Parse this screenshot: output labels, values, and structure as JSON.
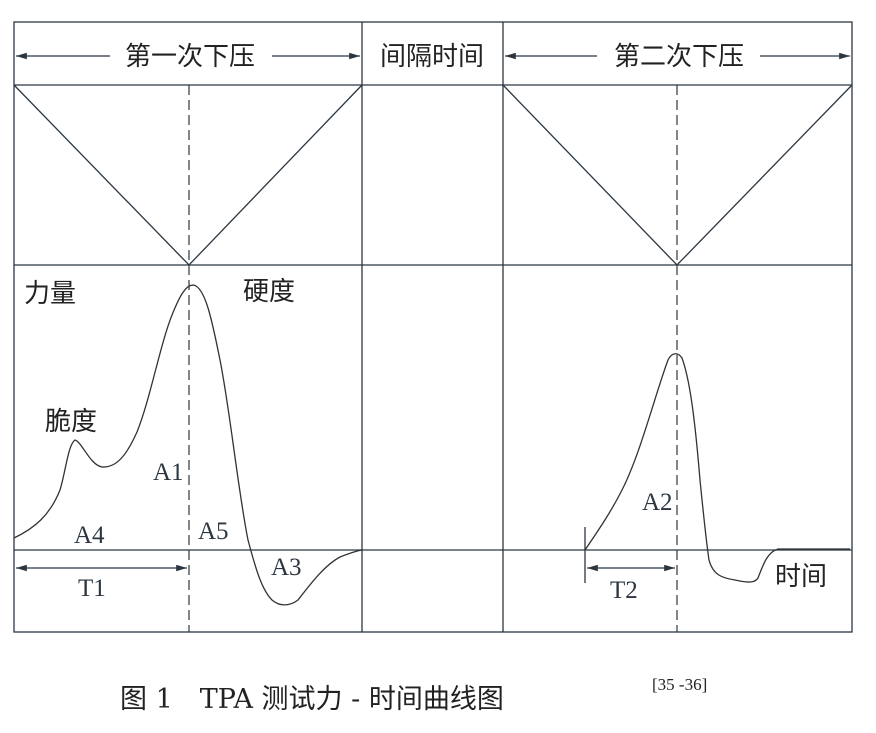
{
  "header": {
    "first_compression": "第一次下压",
    "interval": "间隔时间",
    "second_compression": "第二次下压"
  },
  "labels": {
    "force": "力量",
    "hardness": "硬度",
    "fracturability": "脆度",
    "time": "时间",
    "a1": "A1",
    "a2": "A2",
    "a3": "A3",
    "a4": "A4",
    "a5": "A5",
    "t1": "T1",
    "t2": "T2"
  },
  "caption": {
    "text": "图 1　TPA 测试力 - 时间曲线图",
    "reference": "[35 -36]"
  }
}
